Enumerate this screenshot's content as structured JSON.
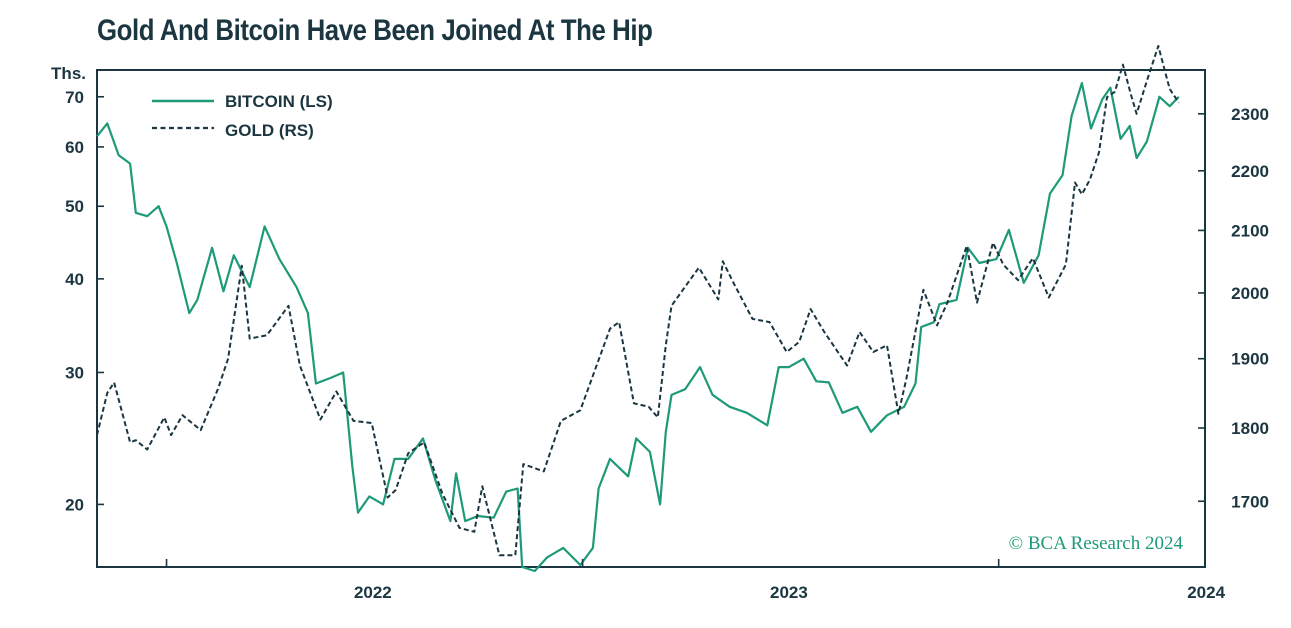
{
  "title": "Gold And Bitcoin Have Been Joined At The Hip",
  "credit": "© BCA Research 2024",
  "colors": {
    "bitcoin": "#1e9a78",
    "gold": "#1b3640",
    "frame": "#1b3640",
    "title": "#1b3640"
  },
  "chart_data": {
    "type": "line",
    "title": "Gold And Bitcoin Have Been Joined At The Hip",
    "left_axis": {
      "unit_label": "Ths.",
      "scale": "log",
      "ticks": [
        20,
        30,
        40,
        50,
        60,
        70
      ],
      "range": [
        16.5,
        76
      ]
    },
    "right_axis": {
      "scale": "log",
      "ticks": [
        1700,
        1800,
        1900,
        2000,
        2100,
        2200,
        2300
      ],
      "range": [
        1615,
        2380
      ]
    },
    "x_axis": {
      "ticks": [
        "2022",
        "2023",
        "2024"
      ],
      "range": [
        "2021-11-01",
        "2024-06-30"
      ]
    },
    "grid": false,
    "legend": {
      "position": "top-left",
      "entries": [
        "BITCOIN (LS)",
        "GOLD (RS)"
      ]
    },
    "series": [
      {
        "name": "BITCOIN (LS)",
        "axis": "left",
        "style": "solid",
        "points": [
          [
            "2021-11-01",
            62.0
          ],
          [
            "2021-11-10",
            64.5
          ],
          [
            "2021-11-20",
            58.5
          ],
          [
            "2021-11-30",
            57.0
          ],
          [
            "2021-12-05",
            49.0
          ],
          [
            "2021-12-15",
            48.5
          ],
          [
            "2021-12-25",
            50.0
          ],
          [
            "2022-01-01",
            47.0
          ],
          [
            "2022-01-10",
            42.0
          ],
          [
            "2022-01-21",
            36.0
          ],
          [
            "2022-01-28",
            37.5
          ],
          [
            "2022-02-10",
            44.0
          ],
          [
            "2022-02-20",
            38.5
          ],
          [
            "2022-03-01",
            43.0
          ],
          [
            "2022-03-15",
            39.0
          ],
          [
            "2022-03-28",
            47.0
          ],
          [
            "2022-04-10",
            42.5
          ],
          [
            "2022-04-25",
            39.0
          ],
          [
            "2022-05-05",
            36.0
          ],
          [
            "2022-05-12",
            29.0
          ],
          [
            "2022-05-25",
            29.5
          ],
          [
            "2022-06-05",
            30.0
          ],
          [
            "2022-06-13",
            22.5
          ],
          [
            "2022-06-18",
            19.5
          ],
          [
            "2022-06-28",
            20.5
          ],
          [
            "2022-07-10",
            20.0
          ],
          [
            "2022-07-20",
            23.0
          ],
          [
            "2022-08-01",
            23.0
          ],
          [
            "2022-08-14",
            24.5
          ],
          [
            "2022-08-25",
            21.5
          ],
          [
            "2022-09-07",
            19.0
          ],
          [
            "2022-09-12",
            22.0
          ],
          [
            "2022-09-20",
            19.0
          ],
          [
            "2022-10-01",
            19.3
          ],
          [
            "2022-10-15",
            19.2
          ],
          [
            "2022-10-26",
            20.8
          ],
          [
            "2022-11-05",
            21.0
          ],
          [
            "2022-11-09",
            16.5
          ],
          [
            "2022-11-20",
            16.3
          ],
          [
            "2022-12-01",
            17.0
          ],
          [
            "2022-12-15",
            17.5
          ],
          [
            "2022-12-30",
            16.6
          ],
          [
            "2023-01-10",
            17.5
          ],
          [
            "2023-01-15",
            21.0
          ],
          [
            "2023-01-25",
            23.0
          ],
          [
            "2023-02-10",
            21.8
          ],
          [
            "2023-02-17",
            24.5
          ],
          [
            "2023-03-01",
            23.5
          ],
          [
            "2023-03-10",
            20.0
          ],
          [
            "2023-03-15",
            25.0
          ],
          [
            "2023-03-20",
            28.0
          ],
          [
            "2023-04-01",
            28.5
          ],
          [
            "2023-04-14",
            30.5
          ],
          [
            "2023-04-25",
            28.0
          ],
          [
            "2023-05-10",
            27.0
          ],
          [
            "2023-05-25",
            26.5
          ],
          [
            "2023-06-12",
            25.5
          ],
          [
            "2023-06-22",
            30.5
          ],
          [
            "2023-07-01",
            30.5
          ],
          [
            "2023-07-14",
            31.3
          ],
          [
            "2023-07-25",
            29.2
          ],
          [
            "2023-08-05",
            29.1
          ],
          [
            "2023-08-17",
            26.5
          ],
          [
            "2023-08-30",
            27.0
          ],
          [
            "2023-09-11",
            25.0
          ],
          [
            "2023-09-25",
            26.3
          ],
          [
            "2023-10-10",
            27.0
          ],
          [
            "2023-10-20",
            29.0
          ],
          [
            "2023-10-25",
            34.5
          ],
          [
            "2023-11-05",
            35.0
          ],
          [
            "2023-11-10",
            37.0
          ],
          [
            "2023-11-25",
            37.5
          ],
          [
            "2023-12-05",
            44.0
          ],
          [
            "2023-12-15",
            42.0
          ],
          [
            "2023-12-30",
            42.5
          ],
          [
            "2024-01-10",
            46.5
          ],
          [
            "2024-01-23",
            39.5
          ],
          [
            "2024-02-05",
            43.0
          ],
          [
            "2024-02-15",
            52.0
          ],
          [
            "2024-02-26",
            55.0
          ],
          [
            "2024-03-05",
            66.0
          ],
          [
            "2024-03-14",
            73.0
          ],
          [
            "2024-03-22",
            63.5
          ],
          [
            "2024-04-01",
            69.5
          ],
          [
            "2024-04-08",
            72.0
          ],
          [
            "2024-04-17",
            61.5
          ],
          [
            "2024-04-25",
            64.0
          ],
          [
            "2024-05-01",
            58.0
          ],
          [
            "2024-05-10",
            61.0
          ],
          [
            "2024-05-21",
            70.0
          ],
          [
            "2024-05-30",
            68.0
          ],
          [
            "2024-06-07",
            70.0
          ]
        ]
      },
      {
        "name": "GOLD (RS)",
        "axis": "right",
        "style": "dashed",
        "points": [
          [
            "2021-11-01",
            1790
          ],
          [
            "2021-11-10",
            1850
          ],
          [
            "2021-11-16",
            1865
          ],
          [
            "2021-11-30",
            1780
          ],
          [
            "2021-12-05",
            1783
          ],
          [
            "2021-12-15",
            1770
          ],
          [
            "2021-12-30",
            1815
          ],
          [
            "2022-01-05",
            1790
          ],
          [
            "2022-01-15",
            1818
          ],
          [
            "2022-01-31",
            1797
          ],
          [
            "2022-02-15",
            1855
          ],
          [
            "2022-02-24",
            1900
          ],
          [
            "2022-03-08",
            2043
          ],
          [
            "2022-03-15",
            1930
          ],
          [
            "2022-03-30",
            1935
          ],
          [
            "2022-04-18",
            1980
          ],
          [
            "2022-04-28",
            1890
          ],
          [
            "2022-05-16",
            1812
          ],
          [
            "2022-05-30",
            1852
          ],
          [
            "2022-06-14",
            1810
          ],
          [
            "2022-06-30",
            1807
          ],
          [
            "2022-07-14",
            1705
          ],
          [
            "2022-07-21",
            1715
          ],
          [
            "2022-08-01",
            1765
          ],
          [
            "2022-08-15",
            1780
          ],
          [
            "2022-08-31",
            1710
          ],
          [
            "2022-09-15",
            1665
          ],
          [
            "2022-09-28",
            1660
          ],
          [
            "2022-10-05",
            1720
          ],
          [
            "2022-10-20",
            1630
          ],
          [
            "2022-11-03",
            1630
          ],
          [
            "2022-11-10",
            1750
          ],
          [
            "2022-11-28",
            1740
          ],
          [
            "2022-12-13",
            1810
          ],
          [
            "2022-12-30",
            1825
          ],
          [
            "2023-01-10",
            1875
          ],
          [
            "2023-01-25",
            1945
          ],
          [
            "2023-02-02",
            1955
          ],
          [
            "2023-02-15",
            1835
          ],
          [
            "2023-02-28",
            1830
          ],
          [
            "2023-03-08",
            1815
          ],
          [
            "2023-03-15",
            1920
          ],
          [
            "2023-03-20",
            1980
          ],
          [
            "2023-04-05",
            2020
          ],
          [
            "2023-04-13",
            2040
          ],
          [
            "2023-04-30",
            1990
          ],
          [
            "2023-05-04",
            2050
          ],
          [
            "2023-05-15",
            2010
          ],
          [
            "2023-05-30",
            1960
          ],
          [
            "2023-06-14",
            1955
          ],
          [
            "2023-06-29",
            1910
          ],
          [
            "2023-07-10",
            1925
          ],
          [
            "2023-07-20",
            1975
          ],
          [
            "2023-08-01",
            1940
          ],
          [
            "2023-08-21",
            1890
          ],
          [
            "2023-09-01",
            1940
          ],
          [
            "2023-09-13",
            1910
          ],
          [
            "2023-09-25",
            1920
          ],
          [
            "2023-10-05",
            1820
          ],
          [
            "2023-10-12",
            1870
          ],
          [
            "2023-10-27",
            2005
          ],
          [
            "2023-11-08",
            1950
          ],
          [
            "2023-11-17",
            1985
          ],
          [
            "2023-12-04",
            2075
          ],
          [
            "2023-12-13",
            1985
          ],
          [
            "2023-12-27",
            2080
          ],
          [
            "2024-01-05",
            2045
          ],
          [
            "2024-01-18",
            2020
          ],
          [
            "2024-01-31",
            2055
          ],
          [
            "2024-02-14",
            1993
          ],
          [
            "2024-02-29",
            2045
          ],
          [
            "2024-03-08",
            2180
          ],
          [
            "2024-03-14",
            2160
          ],
          [
            "2024-03-21",
            2185
          ],
          [
            "2024-03-29",
            2232
          ],
          [
            "2024-04-05",
            2330
          ],
          [
            "2024-04-12",
            2340
          ],
          [
            "2024-04-19",
            2390
          ],
          [
            "2024-04-26",
            2335
          ],
          [
            "2024-05-01",
            2300
          ],
          [
            "2024-05-10",
            2360
          ],
          [
            "2024-05-20",
            2425
          ],
          [
            "2024-05-30",
            2345
          ],
          [
            "2024-06-07",
            2320
          ]
        ]
      }
    ]
  }
}
